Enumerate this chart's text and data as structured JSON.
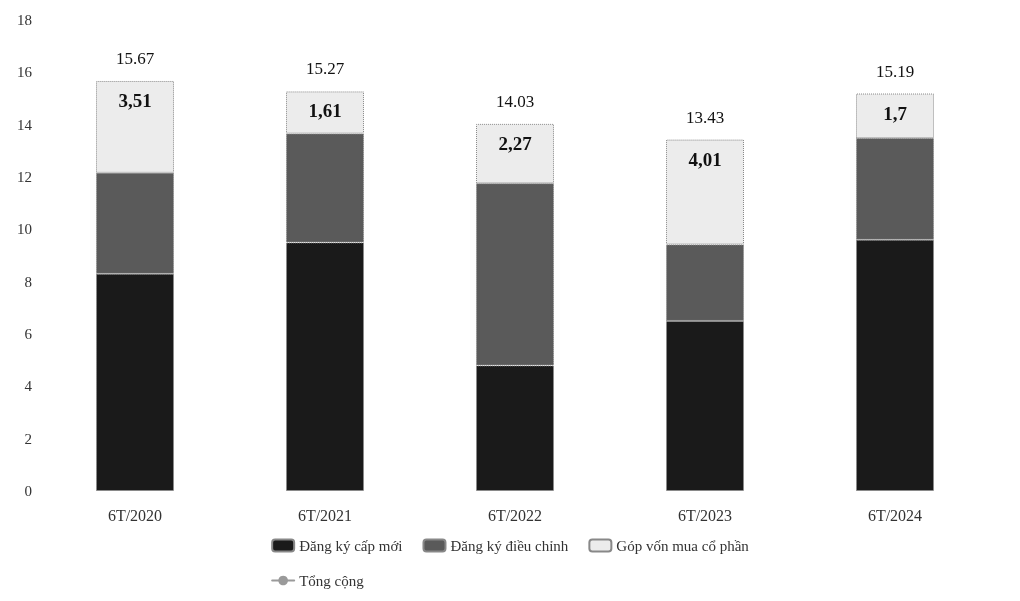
{
  "chart_data": {
    "type": "bar",
    "stacked": true,
    "categories": [
      "6T/2020",
      "6T/2021",
      "6T/2022",
      "6T/2023",
      "6T/2024"
    ],
    "series": [
      {
        "name": "Đăng ký cấp mới",
        "color": "#1a1a1a",
        "values": [
          8.3,
          9.5,
          4.8,
          6.5,
          9.6
        ]
      },
      {
        "name": "Đăng ký điều chỉnh",
        "color": "#5a5a5a",
        "values": [
          3.86,
          4.16,
          6.96,
          2.92,
          3.89
        ]
      },
      {
        "name": "Góp vốn mua cổ phần",
        "color": "#ececec",
        "values": [
          3.51,
          1.61,
          2.27,
          4.01,
          1.7
        ],
        "value_labels": [
          "3,51",
          "1,61",
          "2,27",
          "4,01",
          "1,7"
        ]
      },
      {
        "name": "Tổng cộng",
        "type": "line",
        "color": "#9a9a9a",
        "values": [
          null,
          null,
          null,
          null,
          null
        ]
      }
    ],
    "totals": [
      "15.67",
      "15.27",
      "14.03",
      "13.43",
      "15.19"
    ],
    "ylim": [
      0,
      18
    ],
    "yticks": [
      0,
      2,
      4,
      6,
      8,
      10,
      12,
      14,
      16,
      18
    ],
    "grid": false,
    "legend": "bottom"
  }
}
